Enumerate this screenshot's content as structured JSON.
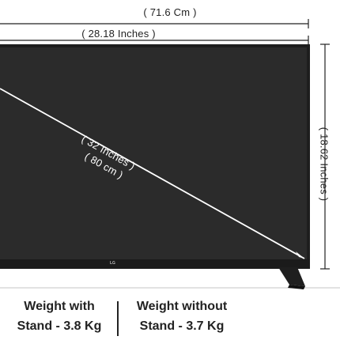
{
  "dimensions": {
    "width_cm": "( 71.6 Cm )",
    "width_inches": "( 28.18 Inches )",
    "diagonal_inches": "( 32 Inches )",
    "diagonal_cm": "( 80 cm )",
    "height_inches": "( 18.62 Inches )"
  },
  "brand_logo": "LG",
  "weights": {
    "with_stand_line1": "Weight with",
    "with_stand_line2": "Stand - 3.8 Kg",
    "without_stand_line1": "Weight without",
    "without_stand_line2": "Stand - 3.7 Kg"
  },
  "colors": {
    "tv_frame": "#1e1e1e",
    "screen": "#2b2b2b",
    "lines": "#222222"
  }
}
